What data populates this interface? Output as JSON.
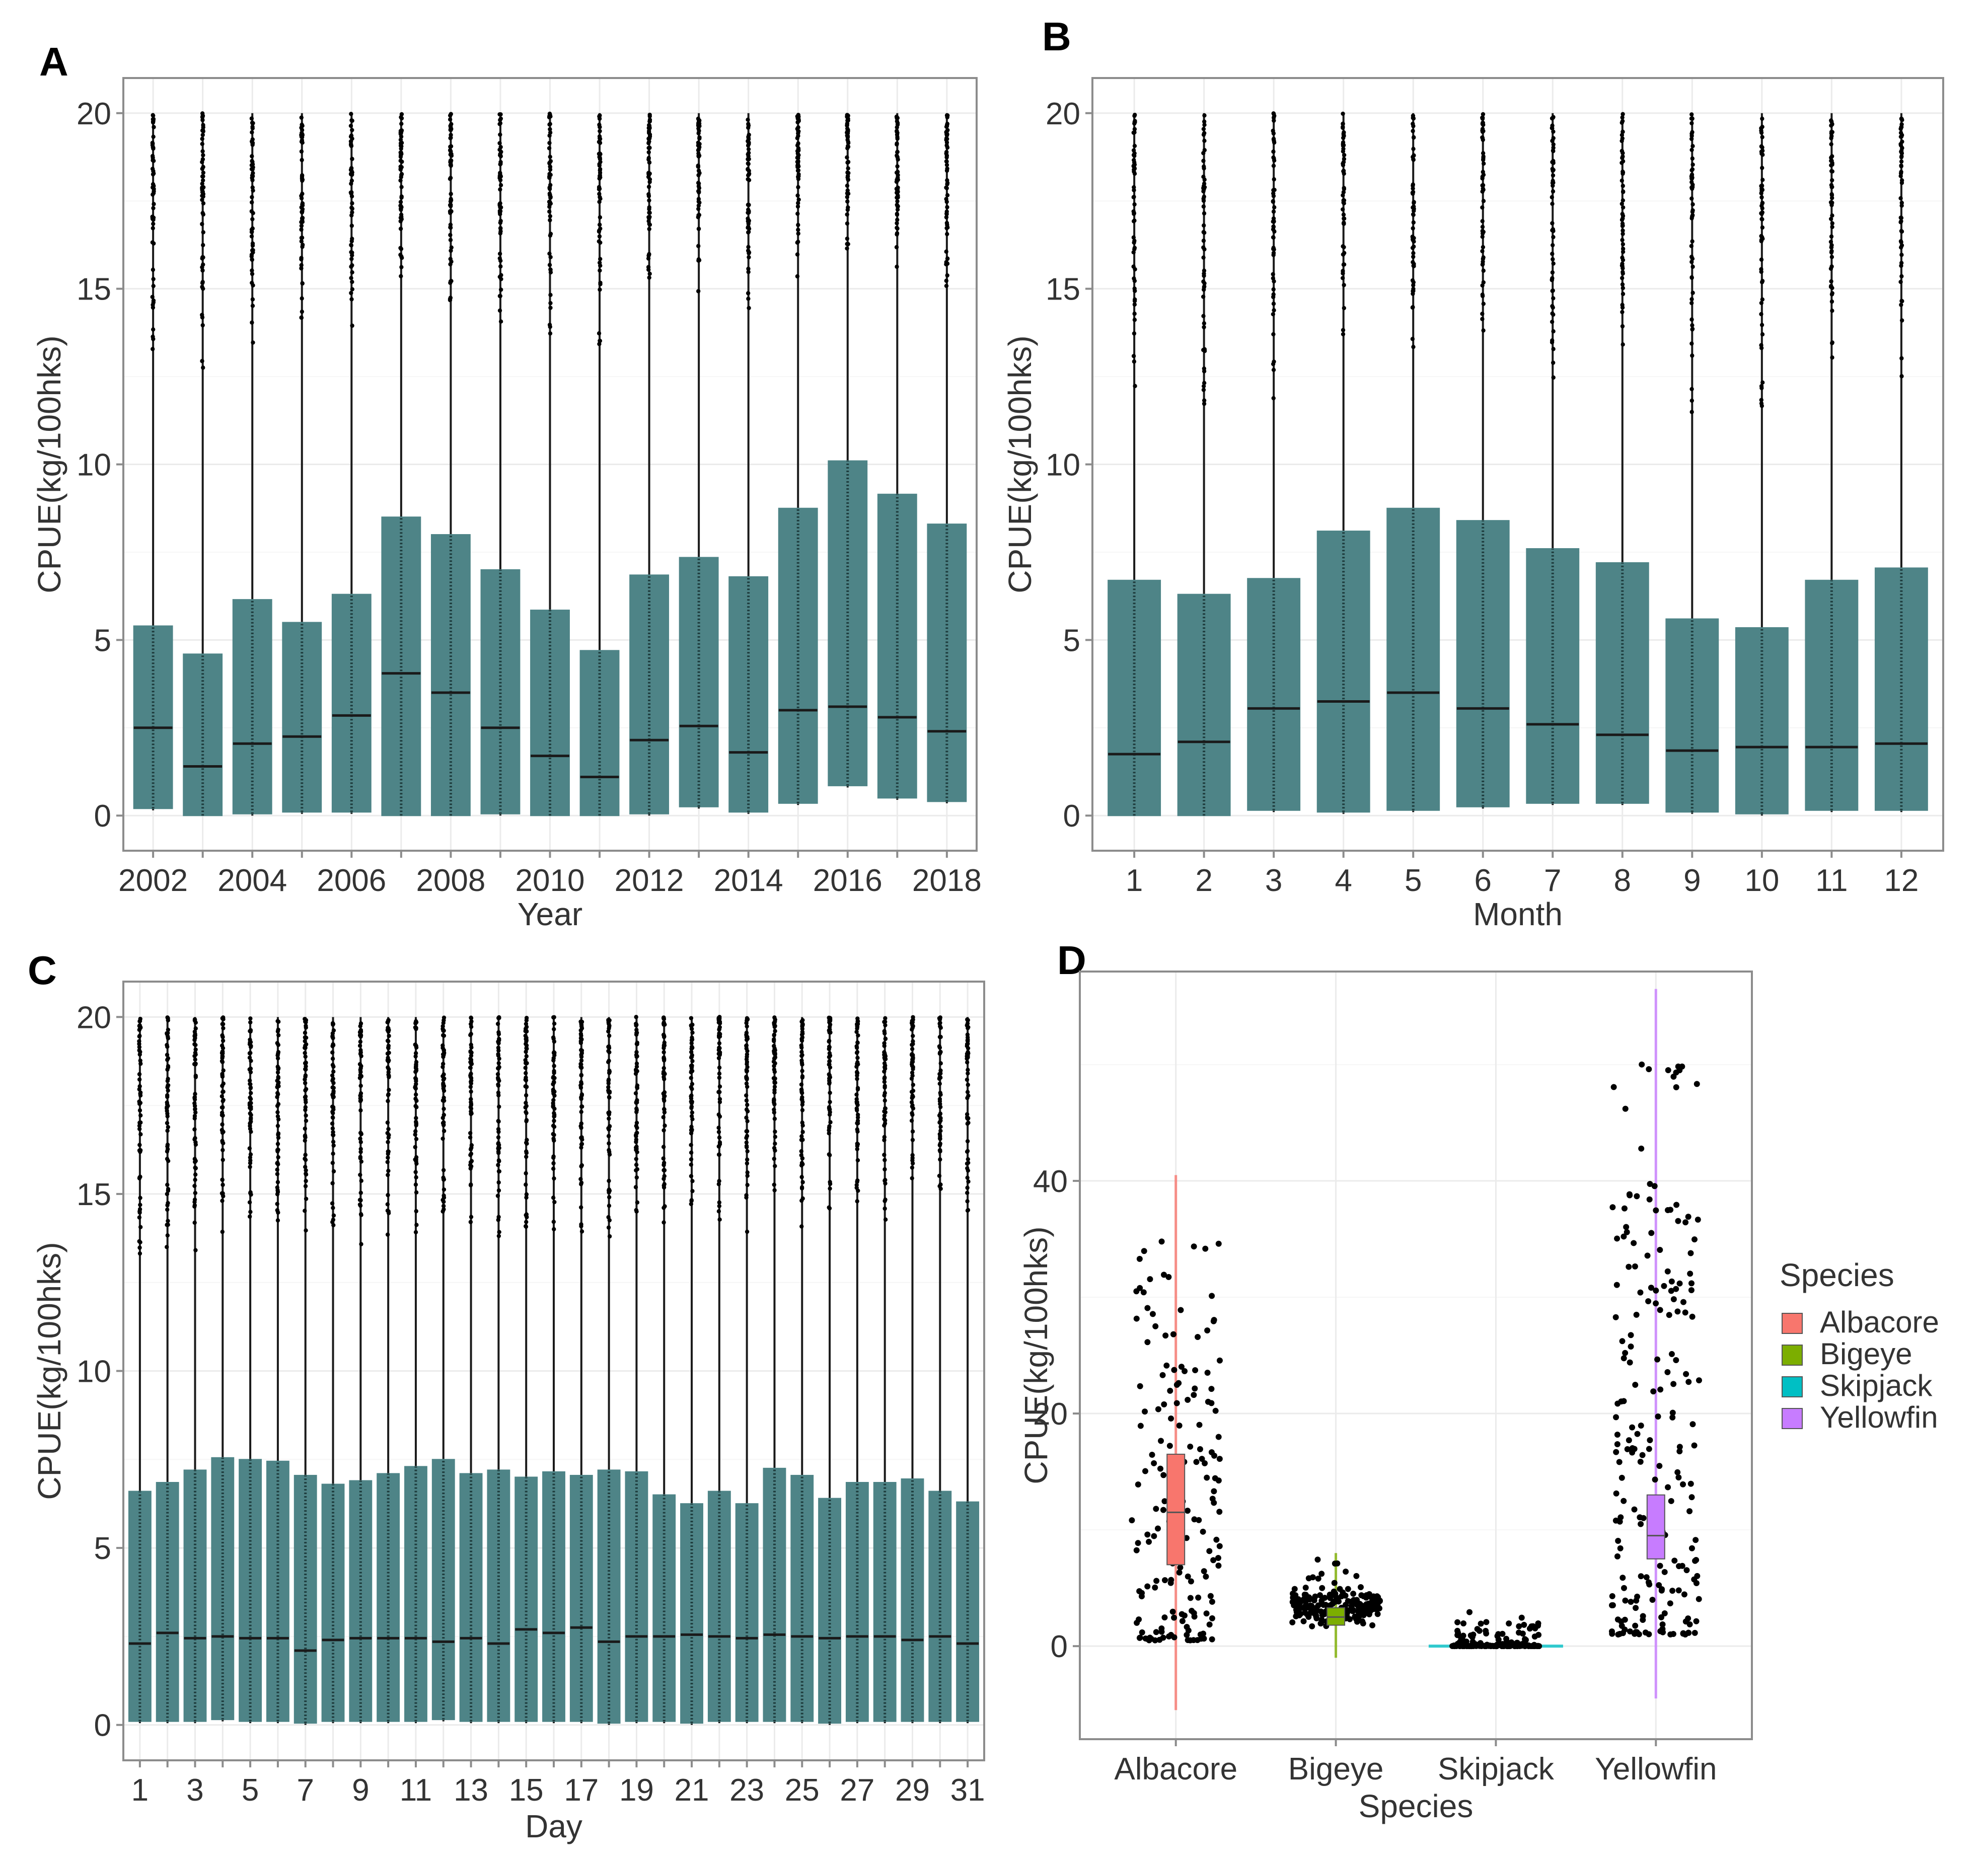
{
  "colors": {
    "box_fill": "#4e8487",
    "box_line": "#1a1a1a",
    "panel_border": "#8c8c8c",
    "grid_major": "#ebebeb",
    "grid_minor": "#f6f6f6",
    "point": "#000000",
    "text": "#333333",
    "panel_letter": "#000000"
  },
  "chart_data": [
    {
      "panel": "A",
      "type": "boxplot",
      "xlabel": "Year",
      "ylabel": "CPUE(kg/100hks)",
      "ylim": [
        -1,
        21
      ],
      "yticks": [
        0,
        5,
        10,
        15,
        20
      ],
      "xtick_labels": [
        "2002",
        "2004",
        "2006",
        "2008",
        "2010",
        "2012",
        "2014",
        "2016",
        "2018"
      ],
      "categories": [
        "2002",
        "2003",
        "2004",
        "2005",
        "2006",
        "2007",
        "2008",
        "2009",
        "2010",
        "2011",
        "2012",
        "2013",
        "2014",
        "2015",
        "2016",
        "2017",
        "2018"
      ],
      "boxes": [
        {
          "q1": 0.2,
          "median": 2.5,
          "q3": 5.4
        },
        {
          "q1": 0.0,
          "median": 1.4,
          "q3": 4.6
        },
        {
          "q1": 0.05,
          "median": 2.05,
          "q3": 6.15
        },
        {
          "q1": 0.1,
          "median": 2.25,
          "q3": 5.5
        },
        {
          "q1": 0.1,
          "median": 2.85,
          "q3": 6.3
        },
        {
          "q1": 0.0,
          "median": 4.05,
          "q3": 8.5
        },
        {
          "q1": 0.0,
          "median": 3.5,
          "q3": 8.0
        },
        {
          "q1": 0.05,
          "median": 2.5,
          "q3": 7.0
        },
        {
          "q1": 0.0,
          "median": 1.7,
          "q3": 5.85
        },
        {
          "q1": 0.0,
          "median": 1.1,
          "q3": 4.7
        },
        {
          "q1": 0.05,
          "median": 2.15,
          "q3": 6.85
        },
        {
          "q1": 0.25,
          "median": 2.55,
          "q3": 7.35
        },
        {
          "q1": 0.1,
          "median": 1.8,
          "q3": 6.8
        },
        {
          "q1": 0.35,
          "median": 3.0,
          "q3": 8.75
        },
        {
          "q1": 0.85,
          "median": 3.1,
          "q3": 10.1
        },
        {
          "q1": 0.5,
          "median": 2.8,
          "q3": 9.15
        },
        {
          "q1": 0.4,
          "median": 2.4,
          "q3": 8.3
        }
      ]
    },
    {
      "panel": "B",
      "type": "boxplot",
      "xlabel": "Month",
      "ylabel": "CPUE(kg/100hks)",
      "ylim": [
        -1,
        21
      ],
      "yticks": [
        0,
        5,
        10,
        15,
        20
      ],
      "xtick_labels": [
        "1",
        "2",
        "3",
        "4",
        "5",
        "6",
        "7",
        "8",
        "9",
        "10",
        "11",
        "12"
      ],
      "categories": [
        "1",
        "2",
        "3",
        "4",
        "5",
        "6",
        "7",
        "8",
        "9",
        "10",
        "11",
        "12"
      ],
      "boxes": [
        {
          "q1": 0.0,
          "median": 1.75,
          "q3": 6.7
        },
        {
          "q1": 0.0,
          "median": 2.1,
          "q3": 6.3
        },
        {
          "q1": 0.15,
          "median": 3.05,
          "q3": 6.75
        },
        {
          "q1": 0.1,
          "median": 3.25,
          "q3": 8.1
        },
        {
          "q1": 0.15,
          "median": 3.5,
          "q3": 8.75
        },
        {
          "q1": 0.25,
          "median": 3.05,
          "q3": 8.4
        },
        {
          "q1": 0.35,
          "median": 2.6,
          "q3": 7.6
        },
        {
          "q1": 0.35,
          "median": 2.3,
          "q3": 7.2
        },
        {
          "q1": 0.1,
          "median": 1.85,
          "q3": 5.6
        },
        {
          "q1": 0.05,
          "median": 1.95,
          "q3": 5.35
        },
        {
          "q1": 0.15,
          "median": 1.95,
          "q3": 6.7
        },
        {
          "q1": 0.15,
          "median": 2.05,
          "q3": 7.05
        }
      ]
    },
    {
      "panel": "C",
      "type": "boxplot",
      "xlabel": "Day",
      "ylabel": "CPUE(kg/100hks)",
      "ylim": [
        -1,
        21
      ],
      "yticks": [
        0,
        5,
        10,
        15,
        20
      ],
      "xtick_labels": [
        "1",
        "3",
        "5",
        "7",
        "9",
        "11",
        "13",
        "15",
        "17",
        "19",
        "21",
        "23",
        "25",
        "27",
        "29",
        "31"
      ],
      "categories": [
        "1",
        "2",
        "3",
        "4",
        "5",
        "6",
        "7",
        "8",
        "9",
        "10",
        "11",
        "12",
        "13",
        "14",
        "15",
        "16",
        "17",
        "18",
        "19",
        "20",
        "21",
        "22",
        "23",
        "24",
        "25",
        "26",
        "27",
        "28",
        "29",
        "30",
        "31"
      ],
      "boxes": [
        {
          "q1": 0.1,
          "median": 2.3,
          "q3": 6.6
        },
        {
          "q1": 0.1,
          "median": 2.6,
          "q3": 6.85
        },
        {
          "q1": 0.1,
          "median": 2.45,
          "q3": 7.2
        },
        {
          "q1": 0.15,
          "median": 2.5,
          "q3": 7.55
        },
        {
          "q1": 0.1,
          "median": 2.45,
          "q3": 7.5
        },
        {
          "q1": 0.1,
          "median": 2.45,
          "q3": 7.45
        },
        {
          "q1": 0.05,
          "median": 2.1,
          "q3": 7.05
        },
        {
          "q1": 0.1,
          "median": 2.4,
          "q3": 6.8
        },
        {
          "q1": 0.1,
          "median": 2.45,
          "q3": 6.9
        },
        {
          "q1": 0.1,
          "median": 2.45,
          "q3": 7.1
        },
        {
          "q1": 0.1,
          "median": 2.45,
          "q3": 7.3
        },
        {
          "q1": 0.15,
          "median": 2.35,
          "q3": 7.5
        },
        {
          "q1": 0.1,
          "median": 2.45,
          "q3": 7.1
        },
        {
          "q1": 0.1,
          "median": 2.3,
          "q3": 7.2
        },
        {
          "q1": 0.1,
          "median": 2.7,
          "q3": 7.0
        },
        {
          "q1": 0.1,
          "median": 2.6,
          "q3": 7.15
        },
        {
          "q1": 0.1,
          "median": 2.75,
          "q3": 7.05
        },
        {
          "q1": 0.05,
          "median": 2.35,
          "q3": 7.2
        },
        {
          "q1": 0.1,
          "median": 2.5,
          "q3": 7.15
        },
        {
          "q1": 0.1,
          "median": 2.5,
          "q3": 6.5
        },
        {
          "q1": 0.05,
          "median": 2.55,
          "q3": 6.25
        },
        {
          "q1": 0.1,
          "median": 2.5,
          "q3": 6.6
        },
        {
          "q1": 0.1,
          "median": 2.45,
          "q3": 6.25
        },
        {
          "q1": 0.1,
          "median": 2.55,
          "q3": 7.25
        },
        {
          "q1": 0.1,
          "median": 2.5,
          "q3": 7.05
        },
        {
          "q1": 0.05,
          "median": 2.45,
          "q3": 6.4
        },
        {
          "q1": 0.1,
          "median": 2.5,
          "q3": 6.85
        },
        {
          "q1": 0.1,
          "median": 2.5,
          "q3": 6.85
        },
        {
          "q1": 0.1,
          "median": 2.4,
          "q3": 6.95
        },
        {
          "q1": 0.1,
          "median": 2.5,
          "q3": 6.6
        },
        {
          "q1": 0.1,
          "median": 2.3,
          "q3": 6.3
        }
      ]
    },
    {
      "panel": "D",
      "type": "boxplot",
      "xlabel": "Species",
      "ylabel": "CPUE(kg/100hks)",
      "ylim": [
        -8,
        58
      ],
      "yticks": [
        0,
        20,
        40
      ],
      "xtick_labels": [
        "Albacore",
        "Bigeye",
        "Skipjack",
        "Yellowfin"
      ],
      "categories": [
        "Albacore",
        "Bigeye",
        "Skipjack",
        "Yellowfin"
      ],
      "legend": {
        "title": "Species",
        "placement": "right",
        "entries": [
          {
            "label": "Albacore",
            "color": "#f8766d"
          },
          {
            "label": "Bigeye",
            "color": "#7cae00"
          },
          {
            "label": "Skipjack",
            "color": "#00bfc4"
          },
          {
            "label": "Yellowfin",
            "color": "#c77cff"
          }
        ]
      },
      "boxes": [
        {
          "species": "Albacore",
          "whisker_low": -5.5,
          "q1": 7.0,
          "median": 11.5,
          "q3": 16.5,
          "whisker_high": 40.5,
          "color": "#f8766d",
          "point_range": [
            0.5,
            35.0
          ],
          "point_count": 170
        },
        {
          "species": "Bigeye",
          "whisker_low": -1.0,
          "q1": 1.8,
          "median": 2.5,
          "q3": 3.3,
          "whisker_high": 8.0,
          "color": "#7cae00",
          "point_range": [
            0.2,
            7.5
          ],
          "point_count": 210
        },
        {
          "species": "Skipjack",
          "whisker_low": 0.0,
          "q1": 0.0,
          "median": 0.0,
          "q3": 0.15,
          "whisker_high": 0.2,
          "color": "#00bfc4",
          "point_range": [
            0.0,
            3.0
          ],
          "point_count": 130
        },
        {
          "species": "Yellowfin",
          "whisker_low": -4.5,
          "q1": 7.5,
          "median": 9.5,
          "q3": 13.0,
          "whisker_high": 56.5,
          "color": "#c77cff",
          "point_range": [
            1.0,
            51.0
          ],
          "point_count": 210
        }
      ]
    }
  ]
}
